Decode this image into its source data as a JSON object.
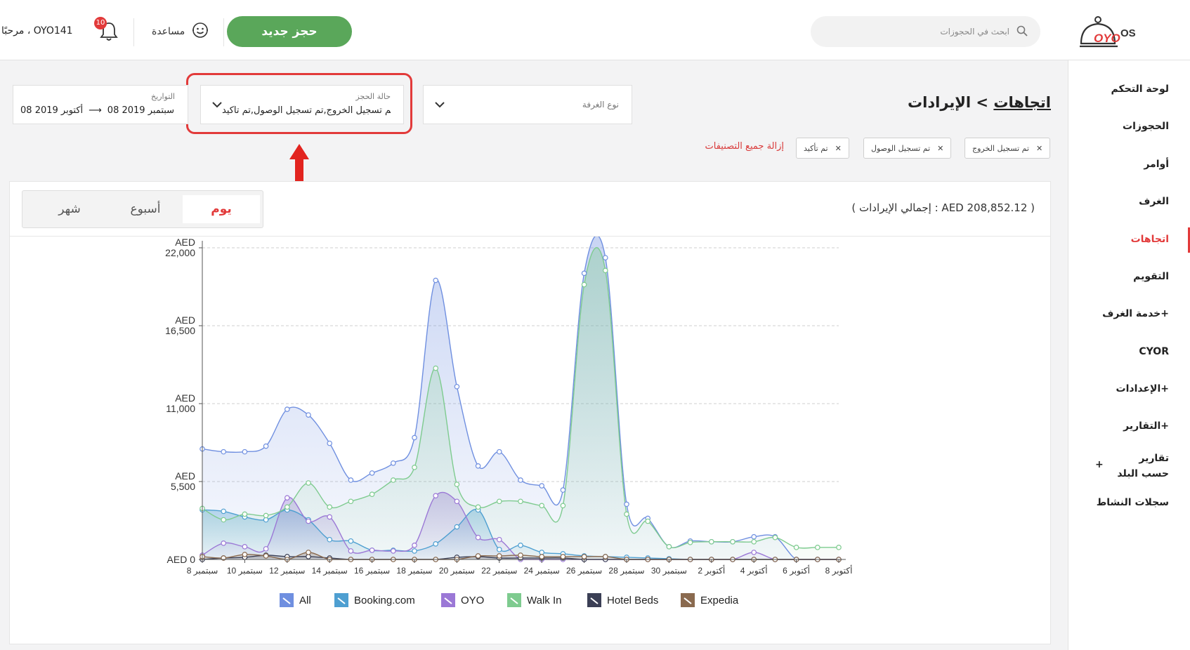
{
  "header": {
    "greeting": "مرحبًا ، OYO141",
    "notification_count": "10",
    "help_label": "مساعدة",
    "new_booking_label": "حجز جديد",
    "search_placeholder": "ابحث في الحجوزات",
    "logo_text": "OYO OS"
  },
  "sidebar": {
    "items": [
      {
        "label": "لوحة التحكم"
      },
      {
        "label": "الحجوزات"
      },
      {
        "label": "أوامر"
      },
      {
        "label": "الغرف"
      },
      {
        "label": "اتجاهات"
      },
      {
        "label": "التقويم"
      },
      {
        "label": "خدمة الغرف+"
      },
      {
        "label": "CYOR"
      },
      {
        "label": "الإعدادات+"
      },
      {
        "label": "التقارير+"
      },
      {
        "label": "تقارير حسب البلد"
      },
      {
        "label": "سجلات النشاط"
      }
    ],
    "active_index": 4,
    "plus_symbol": "+"
  },
  "breadcrumb": {
    "parent": "اتجاهات",
    "separator": ">",
    "current": "الإيرادات"
  },
  "filters": {
    "room_type": {
      "label": "نوع الغرفة",
      "value": ""
    },
    "booking_status": {
      "label": "حالة الحجز",
      "value": "تم تسجيل الخروج,تم تسجيل الوصول,تم تأكيد"
    },
    "dates": {
      "label": "التواريخ",
      "from": "08 سبتمبر 2019",
      "to": "08 أكتوبر 2019",
      "arrow": "⟶"
    }
  },
  "chips": [
    "تم تسجيل الخروج",
    "تم تسجيل الوصول",
    "تم تأكيد"
  ],
  "clear_all_label": "إزالة جميع التصنيفات",
  "summary": {
    "total_revenue": "( إجمالي الإيرادات : AED 208,852.12 )"
  },
  "tabs": [
    "يوم",
    "أسبوع",
    "شهر"
  ],
  "active_tab": 0,
  "colors": {
    "accent": "#e23a3a",
    "primary_button": "#5aa75a",
    "all": "#6f8fe0",
    "booking": "#4e9fd1",
    "oyo": "#9b78d6",
    "walkin": "#7ecb8f",
    "hotelbeds": "#3b3f55",
    "expedia": "#8a6a4f"
  },
  "chart_data": {
    "type": "area",
    "title": "",
    "xlabel": "",
    "ylabel": "",
    "ylim": [
      0,
      22000
    ],
    "y_ticks": [
      {
        "value": 0,
        "label": "AED 0"
      },
      {
        "value": 5500,
        "label": "AED 5,500"
      },
      {
        "value": 11000,
        "label": "AED 11,000"
      },
      {
        "value": 16500,
        "label": "AED 16,500"
      },
      {
        "value": 22000,
        "label": "AED 22,000"
      }
    ],
    "x": [
      "8 سبتمبر",
      "9 سبتمبر",
      "10 سبتمبر",
      "11 سبتمبر",
      "12 سبتمبر",
      "13 سبتمبر",
      "14 سبتمبر",
      "15 سبتمبر",
      "16 سبتمبر",
      "17 سبتمبر",
      "18 سبتمبر",
      "19 سبتمبر",
      "20 سبتمبر",
      "21 سبتمبر",
      "22 سبتمبر",
      "23 سبتمبر",
      "24 سبتمبر",
      "25 سبتمبر",
      "26 سبتمبر",
      "27 سبتمبر",
      "28 سبتمبر",
      "29 سبتمبر",
      "30 سبتمبر",
      "1 أكتوبر",
      "2 أكتوبر",
      "3 أكتوبر",
      "4 أكتوبر",
      "5 أكتوبر",
      "6 أكتوبر",
      "7 أكتوبر",
      "8 أكتوبر"
    ],
    "x_tick_labels": [
      "8 سبتمبر",
      "10 سبتمبر",
      "12 سبتمبر",
      "14 سبتمبر",
      "16 سبتمبر",
      "18 سبتمبر",
      "20 سبتمبر",
      "22 سبتمبر",
      "24 سبتمبر",
      "26 سبتمبر",
      "28 سبتمبر",
      "30 سبتمبر",
      "2 أكتوبر",
      "4 أكتوبر",
      "6 أكتوبر",
      "8 أكتوبر"
    ],
    "grid": true,
    "legend_position": "bottom",
    "series": [
      {
        "name": "All",
        "color": "#6f8fe0",
        "values": [
          7800,
          7600,
          7600,
          8000,
          10600,
          10200,
          8200,
          5600,
          6100,
          6800,
          8600,
          19700,
          12200,
          6600,
          7600,
          5600,
          5200,
          4900,
          20200,
          21300,
          3900,
          2900,
          900,
          1300,
          1250,
          1250,
          1600,
          1600,
          0,
          0,
          0
        ]
      },
      {
        "name": "Booking.com",
        "color": "#4e9fd1",
        "values": [
          3500,
          3400,
          3000,
          2800,
          3500,
          2800,
          1400,
          1300,
          650,
          650,
          600,
          1100,
          2300,
          3500,
          700,
          1000,
          500,
          400,
          250,
          200,
          150,
          100,
          50,
          0,
          0,
          0,
          0,
          0,
          0,
          0,
          0
        ]
      },
      {
        "name": "OYO",
        "color": "#9b78d6",
        "values": [
          300,
          1150,
          900,
          750,
          4350,
          2700,
          3000,
          600,
          650,
          600,
          1000,
          4500,
          4100,
          1550,
          1400,
          0,
          0,
          0,
          0,
          0,
          0,
          0,
          0,
          0,
          0,
          0,
          500,
          0,
          0,
          0,
          0
        ]
      },
      {
        "name": "Walk In",
        "color": "#7ecb8f",
        "values": [
          3600,
          2800,
          3200,
          3100,
          3700,
          5400,
          3700,
          4100,
          4600,
          5600,
          6500,
          13500,
          5300,
          3700,
          4100,
          4100,
          3800,
          3800,
          19400,
          20400,
          3200,
          2700,
          900,
          1200,
          1250,
          1250,
          1250,
          1550,
          850,
          850,
          850
        ]
      },
      {
        "name": "Hotel Beds",
        "color": "#3b3f55",
        "values": [
          0,
          100,
          150,
          300,
          200,
          200,
          100,
          0,
          0,
          0,
          0,
          0,
          150,
          200,
          100,
          100,
          100,
          100,
          0,
          0,
          0,
          0,
          0,
          0,
          0,
          0,
          0,
          0,
          0,
          0,
          0
        ]
      },
      {
        "name": "Expedia",
        "color": "#8a6a4f",
        "values": [
          200,
          100,
          350,
          250,
          0,
          500,
          0,
          0,
          0,
          0,
          0,
          0,
          0,
          250,
          250,
          300,
          200,
          200,
          200,
          200,
          0,
          0,
          0,
          0,
          0,
          0,
          0,
          0,
          0,
          0,
          0
        ]
      }
    ]
  }
}
